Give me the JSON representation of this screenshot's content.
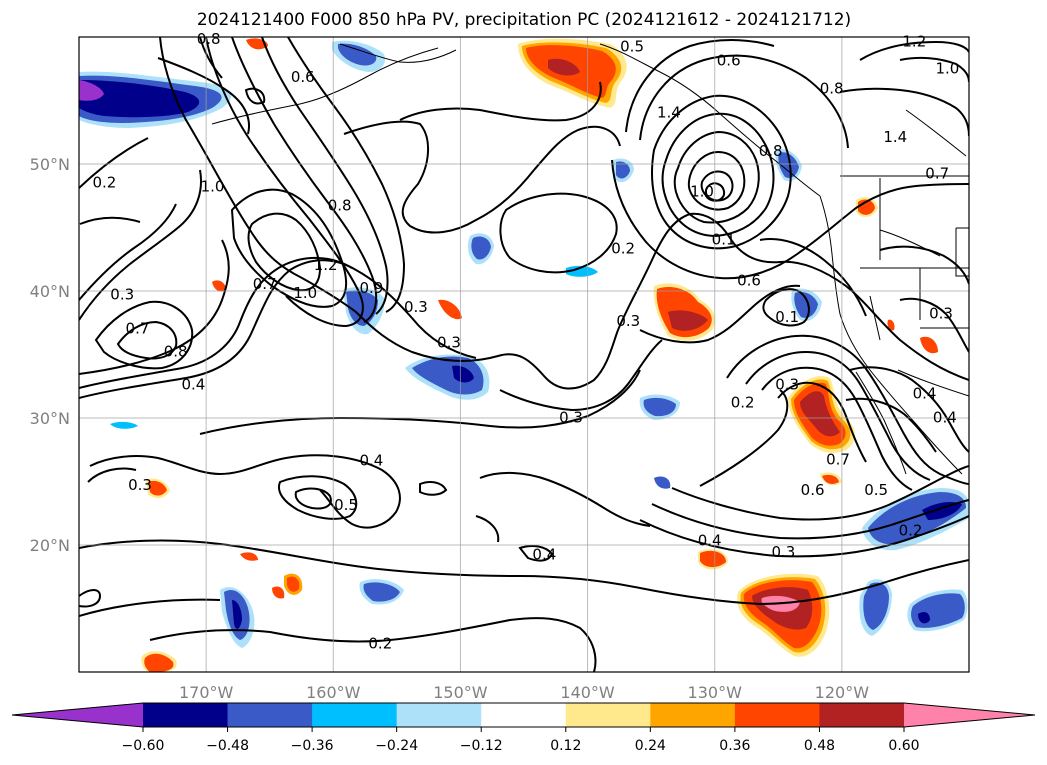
{
  "title": "2024121400 F000 850 hPa PV, precipitation PC (2024121612 - 2024121712)",
  "map": {
    "lon_labels": [
      {
        "lon": -170,
        "label": "170°W"
      },
      {
        "lon": -160,
        "label": "160°W"
      },
      {
        "lon": -150,
        "label": "150°W"
      },
      {
        "lon": -140,
        "label": "140°W"
      },
      {
        "lon": -130,
        "label": "130°W"
      },
      {
        "lon": -120,
        "label": "120°W"
      }
    ],
    "lat_labels": [
      {
        "lat": 50,
        "label": "50°N"
      },
      {
        "lat": 40,
        "label": "40°N"
      },
      {
        "lat": 30,
        "label": "30°N"
      },
      {
        "lat": 20,
        "label": "20°N"
      }
    ],
    "extent": {
      "lon_min": -180,
      "lon_max": -110,
      "lat_min": 10,
      "lat_max": 60
    },
    "gridlines": true
  },
  "contour_labels": [
    {
      "lon": -178.0,
      "lat": 48.3,
      "text": "0.2"
    },
    {
      "lon": -162.4,
      "lat": 56.6,
      "text": "0.6"
    },
    {
      "lon": -169.5,
      "lat": 48.0,
      "text": "1.0"
    },
    {
      "lon": -176.6,
      "lat": 39.5,
      "text": "0.3"
    },
    {
      "lon": -175.4,
      "lat": 36.8,
      "text": "0.7"
    },
    {
      "lon": -172.4,
      "lat": 35.0,
      "text": "0.8"
    },
    {
      "lon": -171.0,
      "lat": 32.4,
      "text": "0.4"
    },
    {
      "lon": -165.4,
      "lat": 40.3,
      "text": "0.7"
    },
    {
      "lon": -162.2,
      "lat": 39.6,
      "text": "1.0"
    },
    {
      "lon": -160.6,
      "lat": 41.8,
      "text": "1.2"
    },
    {
      "lon": -157.0,
      "lat": 40.0,
      "text": "0.9"
    },
    {
      "lon": -159.5,
      "lat": 46.5,
      "text": "0.8"
    },
    {
      "lon": -153.5,
      "lat": 38.5,
      "text": "0.3"
    },
    {
      "lon": -150.9,
      "lat": 35.7,
      "text": "0.3"
    },
    {
      "lon": -141.3,
      "lat": 29.8,
      "text": "0.3"
    },
    {
      "lon": -136.8,
      "lat": 37.4,
      "text": "0.3"
    },
    {
      "lon": -137.2,
      "lat": 43.1,
      "text": "0.2"
    },
    {
      "lon": -131.0,
      "lat": 47.6,
      "text": "1.0"
    },
    {
      "lon": -129.3,
      "lat": 43.8,
      "text": "0.1"
    },
    {
      "lon": -127.3,
      "lat": 40.6,
      "text": "0.6"
    },
    {
      "lon": -124.3,
      "lat": 37.7,
      "text": "0.1"
    },
    {
      "lon": -127.8,
      "lat": 31.0,
      "text": "0.2"
    },
    {
      "lon": -124.3,
      "lat": 32.4,
      "text": "0.3"
    },
    {
      "lon": -120.3,
      "lat": 26.5,
      "text": "0.7"
    },
    {
      "lon": -122.3,
      "lat": 24.1,
      "text": "0.6"
    },
    {
      "lon": -117.3,
      "lat": 24.1,
      "text": "0.5"
    },
    {
      "lon": -114.6,
      "lat": 20.9,
      "text": "0.2"
    },
    {
      "lon": -130.4,
      "lat": 20.1,
      "text": "0.4"
    },
    {
      "lon": -124.6,
      "lat": 19.2,
      "text": "0.3"
    },
    {
      "lon": -143.4,
      "lat": 19.0,
      "text": "0.4"
    },
    {
      "lon": -156.3,
      "lat": 12.0,
      "text": "0.2"
    },
    {
      "lon": -157.0,
      "lat": 26.4,
      "text": "0.4"
    },
    {
      "lon": -159.0,
      "lat": 22.9,
      "text": "0.5"
    },
    {
      "lon": -175.2,
      "lat": 24.5,
      "text": "0.3"
    },
    {
      "lon": -136.5,
      "lat": 59.0,
      "text": "0.5"
    },
    {
      "lon": -128.9,
      "lat": 57.9,
      "text": "0.6"
    },
    {
      "lon": -120.8,
      "lat": 55.7,
      "text": "0.8"
    },
    {
      "lon": -114.3,
      "lat": 59.4,
      "text": "1.2"
    },
    {
      "lon": -111.7,
      "lat": 57.3,
      "text": "1.0"
    },
    {
      "lon": -115.8,
      "lat": 51.9,
      "text": "1.4"
    },
    {
      "lon": -112.5,
      "lat": 49.0,
      "text": "0.7"
    },
    {
      "lon": -133.6,
      "lat": 53.8,
      "text": "1.4"
    },
    {
      "lon": -125.6,
      "lat": 50.8,
      "text": "0.8"
    },
    {
      "lon": -112.2,
      "lat": 38.0,
      "text": "0.3"
    },
    {
      "lon": -113.5,
      "lat": 31.7,
      "text": "0.4"
    },
    {
      "lon": -111.9,
      "lat": 29.8,
      "text": "0.4"
    },
    {
      "lon": -169.8,
      "lat": 59.6,
      "text": "0.8"
    }
  ],
  "colorbar": {
    "colors": [
      "#9932CC",
      "#00008B",
      "#3A5BC7",
      "#00BFFF",
      "#ADE1F9",
      "#FFFFFF",
      "#FFE98C",
      "#FFA500",
      "#FF4500",
      "#B22222",
      "#FF82AB"
    ],
    "tick_labels": [
      "−0.60",
      "−0.48",
      "−0.36",
      "−0.24",
      "−0.12",
      "0.12",
      "0.24",
      "0.36",
      "0.48",
      "0.60"
    ]
  },
  "chart_data": {
    "type": "map",
    "projection": "PlateCarree",
    "lon_range": [
      -180,
      -110
    ],
    "lat_range": [
      10,
      60
    ],
    "field_contours": "850 hPa PV (black contours, labels 0.1–1.4)",
    "field_shaded": "precipitation PC",
    "shading_levels": [
      -0.6,
      -0.48,
      -0.36,
      -0.24,
      -0.12,
      0.12,
      0.24,
      0.36,
      0.48,
      0.6
    ],
    "extend": "both"
  }
}
